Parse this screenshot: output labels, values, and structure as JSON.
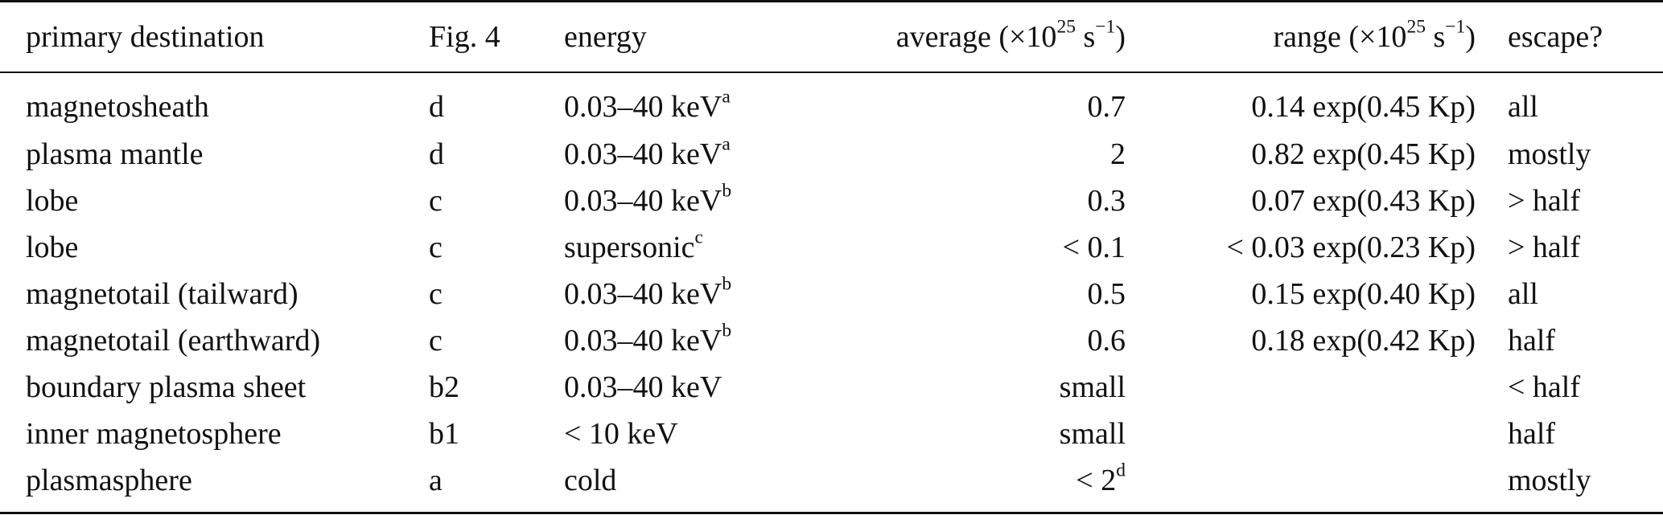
{
  "table": {
    "headers": [
      {
        "text": "primary destination"
      },
      {
        "text": "Fig. 4"
      },
      {
        "text": "energy"
      },
      {
        "pre": "average (×10",
        "sup1": "25",
        "mid": " s",
        "sup2": "−1",
        "post": ")"
      },
      {
        "pre": "range (×10",
        "sup1": "25",
        "mid": " s",
        "sup2": "−1",
        "post": ")"
      },
      {
        "text": "escape?"
      }
    ],
    "rows": [
      {
        "destination": "magnetosheath",
        "fig": "d",
        "energy": "0.03–40 keV",
        "energy_note": "a",
        "average": "0.7",
        "average_note": "",
        "range": "0.14 exp(0.45 Kp)",
        "escape": "all"
      },
      {
        "destination": "plasma mantle",
        "fig": "d",
        "energy": "0.03–40 keV",
        "energy_note": "a",
        "average": "2",
        "average_note": "",
        "range": "0.82 exp(0.45 Kp)",
        "escape": "mostly"
      },
      {
        "destination": "lobe",
        "fig": "c",
        "energy": "0.03–40 keV",
        "energy_note": "b",
        "average": "0.3",
        "average_note": "",
        "range": "0.07 exp(0.43 Kp)",
        "escape": "> half"
      },
      {
        "destination": "lobe",
        "fig": "c",
        "energy": "supersonic",
        "energy_note": "c",
        "average": "< 0.1",
        "average_note": "",
        "range": "< 0.03 exp(0.23 Kp)",
        "escape": "> half"
      },
      {
        "destination": "magnetotail (tailward)",
        "fig": "c",
        "energy": "0.03–40 keV",
        "energy_note": "b",
        "average": "0.5",
        "average_note": "",
        "range": "0.15 exp(0.40 Kp)",
        "escape": "all"
      },
      {
        "destination": "magnetotail (earthward)",
        "fig": "c",
        "energy": "0.03–40 keV",
        "energy_note": "b",
        "average": "0.6",
        "average_note": "",
        "range": "0.18 exp(0.42 Kp)",
        "escape": "half"
      },
      {
        "destination": "boundary plasma sheet",
        "fig": "b2",
        "energy": "0.03–40 keV",
        "energy_note": "",
        "average": "small",
        "average_note": "",
        "range": "",
        "escape": "< half"
      },
      {
        "destination": "inner magnetosphere",
        "fig": "b1",
        "energy": "< 10 keV",
        "energy_note": "",
        "average": "small",
        "average_note": "",
        "range": "",
        "escape": "half"
      },
      {
        "destination": "plasmasphere",
        "fig": "a",
        "energy": "cold",
        "energy_note": "",
        "average": "< 2",
        "average_note": "d",
        "range": "",
        "escape": "mostly"
      }
    ]
  }
}
